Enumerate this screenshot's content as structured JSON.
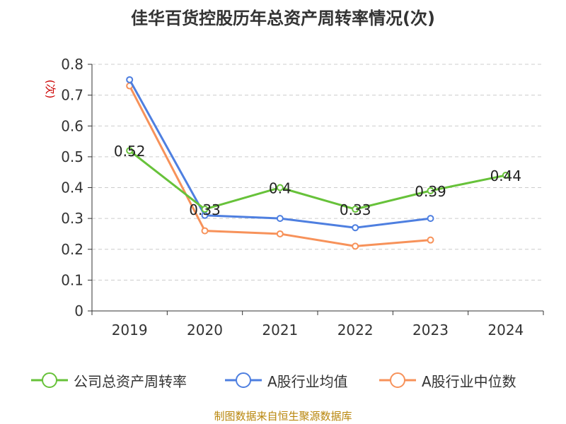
{
  "chart_data": {
    "type": "line",
    "title": "佳华百货控股历年总资产周转率情况(次)",
    "ylabel": "(次)",
    "xlabel": "",
    "categories": [
      "2019",
      "2020",
      "2021",
      "2022",
      "2023",
      "2024"
    ],
    "y_ticks": [
      "0",
      "0.1",
      "0.2",
      "0.3",
      "0.4",
      "0.5",
      "0.6",
      "0.7",
      "0.8"
    ],
    "ylim": [
      0,
      0.8
    ],
    "grid": "horizontal dashed",
    "legend_position": "bottom",
    "series": [
      {
        "name": "公司总资产周转率",
        "color": "#67c23a",
        "values": [
          0.52,
          0.33,
          0.4,
          0.33,
          0.39,
          0.44
        ],
        "labels": [
          "0.52",
          "0.33",
          "0.4",
          "0.33",
          "0.39",
          "0.44"
        ]
      },
      {
        "name": "A股行业均值",
        "color": "#4e7fe0",
        "values": [
          0.75,
          0.31,
          0.3,
          0.27,
          0.3,
          null
        ]
      },
      {
        "name": "A股行业中位数",
        "color": "#f7925a",
        "values": [
          0.73,
          0.26,
          0.25,
          0.21,
          0.23,
          null
        ]
      }
    ]
  },
  "source_note": "制图数据来自恒生聚源数据库"
}
